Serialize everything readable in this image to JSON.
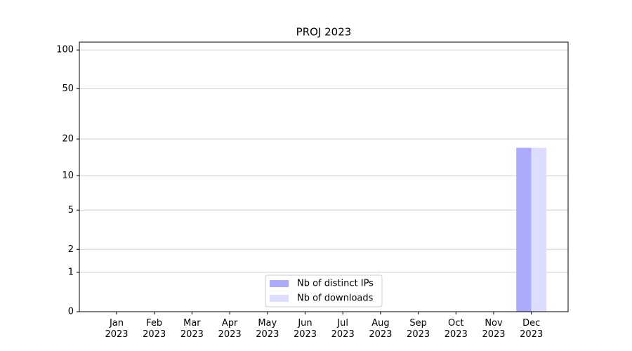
{
  "chart_data": {
    "type": "bar",
    "title": "PROJ 2023",
    "categories": [
      "Jan 2023",
      "Feb 2023",
      "Mar 2023",
      "Apr 2023",
      "May 2023",
      "Jun 2023",
      "Jul 2023",
      "Aug 2023",
      "Sep 2023",
      "Oct 2023",
      "Nov 2023",
      "Dec 2023"
    ],
    "series": [
      {
        "name": "Nb of distinct IPs",
        "color": "#aaaaff",
        "values": [
          0,
          0,
          0,
          0,
          0,
          0,
          0,
          0,
          0,
          0,
          0,
          17
        ]
      },
      {
        "name": "Nb of downloads",
        "color": "#ddddff",
        "values": [
          0,
          0,
          0,
          0,
          0,
          0,
          0,
          0,
          0,
          0,
          0,
          17
        ]
      }
    ],
    "yscale": "log1p",
    "ylim": [
      0,
      115
    ],
    "yticks": [
      0,
      1,
      2,
      5,
      10,
      20,
      50,
      100
    ],
    "grid": true,
    "legend": "lower center"
  }
}
